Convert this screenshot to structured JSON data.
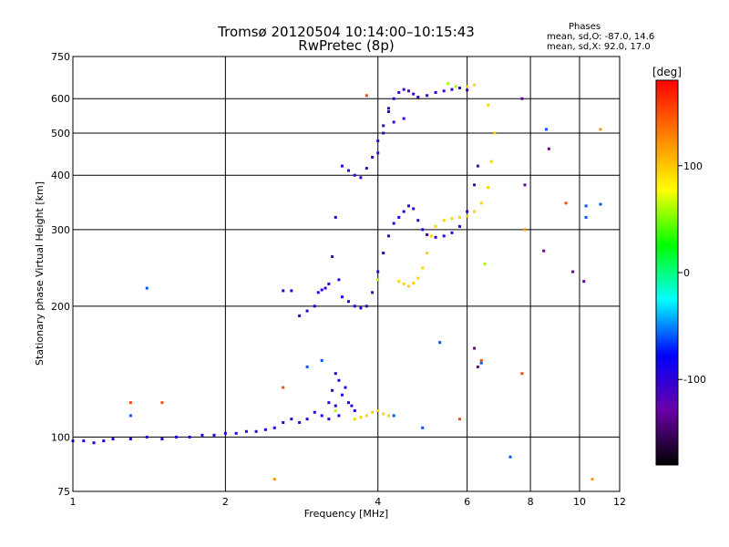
{
  "header": {
    "title_line1": "Tromsø 20120504 10:14:00–10:15:43",
    "title_line2": "RwPretec (8p)"
  },
  "info": {
    "heading": "Phases",
    "line_o": "mean, sd,O: -87.0, 14.6",
    "line_x": "mean, sd,X:  92.0, 17.0"
  },
  "chart_data": {
    "type": "scatter",
    "xlabel": "Frequency [MHz]",
    "ylabel": "Stationary phase Virtual Height [km]",
    "xscale": "log",
    "yscale": "log",
    "xlim": [
      1,
      12
    ],
    "ylim": [
      75,
      750
    ],
    "xticks": [
      1,
      2,
      4,
      6,
      8,
      10,
      12
    ],
    "yticks": [
      75,
      100,
      200,
      300,
      400,
      500,
      600,
      750
    ],
    "grid": true,
    "colorbar": {
      "label": "[deg]",
      "range": [
        -180,
        180
      ],
      "ticks": [
        100,
        0,
        -100
      ],
      "colors": [
        "#000000",
        "#6a00a8",
        "#0000ff",
        "#00ffff",
        "#00ff00",
        "#ffff00",
        "#ff8000",
        "#ff0000"
      ]
    },
    "series": [
      {
        "phase": -95,
        "points": [
          [
            1.0,
            98
          ],
          [
            1.05,
            98
          ],
          [
            1.1,
            97
          ],
          [
            1.15,
            98
          ],
          [
            1.2,
            99
          ],
          [
            1.3,
            99
          ],
          [
            1.4,
            100
          ],
          [
            1.5,
            99
          ],
          [
            1.6,
            100
          ],
          [
            1.7,
            100
          ],
          [
            1.8,
            101
          ],
          [
            1.9,
            101
          ],
          [
            2.0,
            102
          ],
          [
            2.1,
            102
          ],
          [
            2.2,
            103
          ],
          [
            2.3,
            103
          ],
          [
            2.4,
            104
          ],
          [
            2.5,
            105
          ],
          [
            2.6,
            108
          ],
          [
            2.7,
            110
          ],
          [
            2.8,
            108
          ],
          [
            2.9,
            110
          ],
          [
            3.0,
            114
          ],
          [
            3.1,
            112
          ],
          [
            3.2,
            110
          ],
          [
            3.3,
            118
          ],
          [
            3.35,
            112
          ],
          [
            3.4,
            125
          ],
          [
            3.45,
            130
          ],
          [
            3.5,
            120
          ],
          [
            3.55,
            118
          ],
          [
            3.6,
            115
          ],
          [
            3.2,
            120
          ],
          [
            3.25,
            128
          ],
          [
            3.3,
            140
          ],
          [
            3.35,
            135
          ]
        ]
      },
      {
        "phase": -100,
        "points": [
          [
            2.6,
            217
          ],
          [
            2.7,
            217
          ],
          [
            2.8,
            190
          ],
          [
            2.9,
            195
          ],
          [
            3.0,
            200
          ],
          [
            3.05,
            215
          ],
          [
            3.1,
            218
          ],
          [
            3.15,
            220
          ],
          [
            3.2,
            225
          ],
          [
            3.25,
            260
          ],
          [
            3.3,
            320
          ],
          [
            3.35,
            230
          ],
          [
            3.4,
            210
          ],
          [
            3.5,
            205
          ],
          [
            3.6,
            200
          ],
          [
            3.7,
            198
          ],
          [
            3.8,
            200
          ],
          [
            3.9,
            215
          ],
          [
            4.0,
            240
          ],
          [
            4.1,
            265
          ],
          [
            4.2,
            290
          ],
          [
            4.3,
            310
          ],
          [
            4.4,
            320
          ],
          [
            4.5,
            330
          ],
          [
            4.6,
            340
          ],
          [
            4.7,
            335
          ],
          [
            4.8,
            315
          ],
          [
            4.9,
            300
          ],
          [
            5.0,
            292
          ],
          [
            5.2,
            288
          ],
          [
            5.4,
            290
          ],
          [
            5.6,
            295
          ],
          [
            5.8,
            305
          ],
          [
            6.0,
            330
          ],
          [
            6.2,
            380
          ],
          [
            6.3,
            420
          ]
        ]
      },
      {
        "phase": -105,
        "points": [
          [
            3.4,
            420
          ],
          [
            3.5,
            410
          ],
          [
            3.6,
            400
          ],
          [
            3.7,
            395
          ],
          [
            3.8,
            415
          ],
          [
            3.9,
            440
          ],
          [
            4.0,
            480
          ],
          [
            4.1,
            520
          ],
          [
            4.2,
            570
          ],
          [
            4.3,
            600
          ],
          [
            4.4,
            620
          ],
          [
            4.5,
            630
          ],
          [
            4.6,
            625
          ],
          [
            4.7,
            615
          ],
          [
            4.8,
            605
          ],
          [
            5.0,
            610
          ],
          [
            5.2,
            620
          ],
          [
            5.4,
            625
          ],
          [
            5.6,
            630
          ],
          [
            5.8,
            635
          ],
          [
            6.0,
            628
          ],
          [
            4.2,
            560
          ],
          [
            4.3,
            530
          ],
          [
            4.5,
            540
          ],
          [
            4.1,
            500
          ],
          [
            4.0,
            450
          ]
        ]
      },
      {
        "phase": 95,
        "points": [
          [
            3.6,
            110
          ],
          [
            3.7,
            111
          ],
          [
            3.8,
            112
          ],
          [
            3.9,
            114
          ],
          [
            4.0,
            115
          ],
          [
            4.1,
            113
          ],
          [
            4.2,
            112
          ],
          [
            4.4,
            228
          ],
          [
            4.5,
            225
          ],
          [
            4.6,
            222
          ],
          [
            4.7,
            226
          ],
          [
            4.8,
            232
          ],
          [
            4.9,
            245
          ],
          [
            5.0,
            265
          ],
          [
            5.1,
            290
          ],
          [
            5.2,
            305
          ],
          [
            5.4,
            315
          ],
          [
            5.6,
            318
          ],
          [
            5.8,
            320
          ],
          [
            6.0,
            322
          ],
          [
            6.2,
            330
          ],
          [
            6.4,
            345
          ],
          [
            6.6,
            375
          ],
          [
            6.7,
            430
          ],
          [
            6.8,
            500
          ],
          [
            6.2,
            645
          ],
          [
            6.0,
            640
          ],
          [
            6.6,
            580
          ]
        ]
      },
      {
        "phase": 60,
        "points": [
          [
            5.7,
            640
          ],
          [
            5.5,
            650
          ],
          [
            3.3,
            115
          ],
          [
            4.0,
            230
          ],
          [
            6.5,
            250
          ]
        ]
      },
      {
        "phase": -60,
        "points": [
          [
            1.4,
            220
          ],
          [
            1.3,
            112
          ],
          [
            3.1,
            150
          ],
          [
            2.9,
            145
          ],
          [
            4.3,
            112
          ],
          [
            4.9,
            105
          ],
          [
            5.3,
            165
          ],
          [
            6.4,
            148
          ],
          [
            7.3,
            90
          ],
          [
            8.6,
            510
          ],
          [
            10.3,
            340
          ],
          [
            10.3,
            320
          ],
          [
            11.0,
            343
          ]
        ]
      },
      {
        "phase": -130,
        "points": [
          [
            8.7,
            460
          ],
          [
            10.2,
            228
          ],
          [
            9.7,
            240
          ],
          [
            8.5,
            268
          ],
          [
            7.8,
            380
          ],
          [
            6.3,
            145
          ],
          [
            6.2,
            160
          ],
          [
            7.7,
            600
          ]
        ]
      },
      {
        "phase": 150,
        "points": [
          [
            3.8,
            610
          ],
          [
            9.4,
            345
          ],
          [
            2.6,
            130
          ],
          [
            7.7,
            140
          ],
          [
            1.3,
            120
          ],
          [
            1.5,
            120
          ],
          [
            5.8,
            110
          ],
          [
            6.4,
            150
          ]
        ]
      },
      {
        "phase": 120,
        "points": [
          [
            10.6,
            80
          ],
          [
            11.0,
            510
          ],
          [
            2.5,
            80
          ],
          [
            7.8,
            300
          ]
        ]
      }
    ]
  }
}
